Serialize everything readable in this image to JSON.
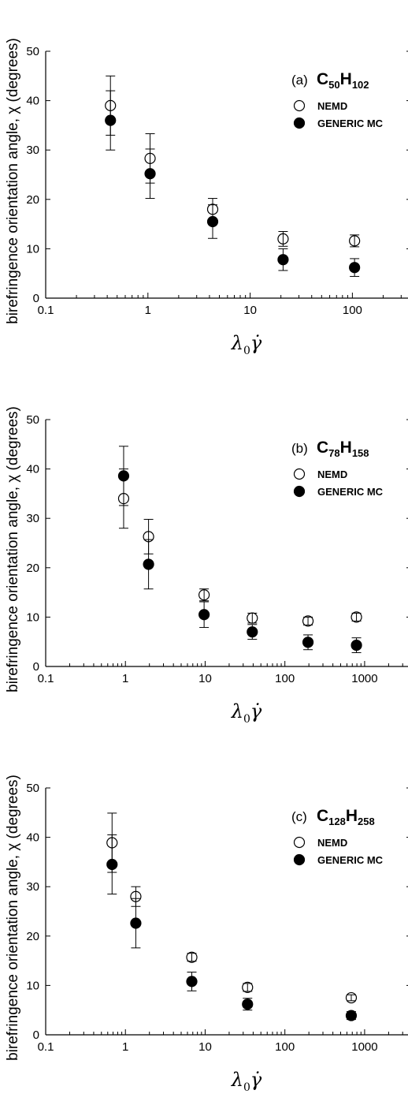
{
  "chart_data": [
    {
      "type": "scatter",
      "panel_tag": "(a)",
      "species": {
        "c": "C",
        "c_sub": "50",
        "h": "H",
        "h_sub": "102"
      },
      "ylabel": "birefringence orientation angle, χ (degrees)",
      "xlabel": {
        "symbol": "λ",
        "sub": "0",
        "rate": "γ̇"
      },
      "xscale": "log",
      "xlim": [
        0.1,
        350
      ],
      "ylim": [
        0,
        50
      ],
      "xticks": [
        "0.1",
        "1",
        "10",
        "100"
      ],
      "yticks": [
        "0",
        "10",
        "20",
        "30",
        "40",
        "50"
      ],
      "legend_position": "top-right",
      "series": [
        {
          "name": "NEMD",
          "marker": "open-circle",
          "x": [
            0.43,
            1.05,
            4.3,
            21,
            105
          ],
          "y": [
            39.0,
            28.3,
            18.0,
            12.0,
            11.6
          ],
          "err": [
            6.0,
            5.0,
            2.2,
            1.5,
            1.2
          ]
        },
        {
          "name": "GENERIC MC",
          "marker": "filled-circle",
          "x": [
            0.43,
            1.05,
            4.3,
            21,
            105
          ],
          "y": [
            36.0,
            25.2,
            15.5,
            7.8,
            6.2
          ],
          "err": [
            6.0,
            5.0,
            3.4,
            2.2,
            1.8
          ]
        }
      ]
    },
    {
      "type": "scatter",
      "panel_tag": "(b)",
      "species": {
        "c": "C",
        "c_sub": "78",
        "h": "H",
        "h_sub": "158"
      },
      "ylabel": "birefringence orientation angle, χ (degrees)",
      "xlabel": {
        "symbol": "λ",
        "sub": "0",
        "rate": "γ̇"
      },
      "xscale": "log",
      "xlim": [
        0.1,
        3500
      ],
      "ylim": [
        0,
        50
      ],
      "xticks": [
        "0.1",
        "1",
        "10",
        "100",
        "1000"
      ],
      "yticks": [
        "0",
        "10",
        "20",
        "30",
        "40",
        "50"
      ],
      "legend_position": "top-right",
      "series": [
        {
          "name": "NEMD",
          "marker": "open-circle",
          "x": [
            0.95,
            1.95,
            9.7,
            39,
            195,
            790
          ],
          "y": [
            34.0,
            26.3,
            14.5,
            9.8,
            9.2,
            10.0
          ],
          "err": [
            6.0,
            3.5,
            1.2,
            1.0,
            0.8,
            0.8
          ]
        },
        {
          "name": "GENERIC MC",
          "marker": "filled-circle",
          "x": [
            0.95,
            1.95,
            9.7,
            39,
            195,
            790
          ],
          "y": [
            38.6,
            20.7,
            10.5,
            7.0,
            4.9,
            4.3
          ],
          "err": [
            6.0,
            5.0,
            2.6,
            1.5,
            1.5,
            1.5
          ]
        }
      ]
    },
    {
      "type": "scatter",
      "panel_tag": "(c)",
      "species": {
        "c": "C",
        "c_sub": "128",
        "h": "H",
        "h_sub": "258"
      },
      "ylabel": "birefringence orientation angle, χ (degrees)",
      "xlabel": {
        "symbol": "λ",
        "sub": "0",
        "rate": "γ̇"
      },
      "xscale": "log",
      "xlim": [
        0.1,
        3500
      ],
      "ylim": [
        0,
        50
      ],
      "xticks": [
        "0.1",
        "1",
        "10",
        "100",
        "1000"
      ],
      "yticks": [
        "0",
        "10",
        "20",
        "30",
        "40",
        "50"
      ],
      "legend_position": "top-right",
      "series": [
        {
          "name": "NEMD",
          "marker": "open-circle",
          "x": [
            0.68,
            1.35,
            6.8,
            34,
            680
          ],
          "y": [
            38.9,
            28.0,
            15.7,
            9.6,
            7.5
          ],
          "err": [
            6.0,
            2.0,
            0.8,
            0.8,
            0.6
          ]
        },
        {
          "name": "GENERIC MC",
          "marker": "filled-circle",
          "x": [
            0.68,
            1.35,
            6.8,
            34,
            680
          ],
          "y": [
            34.5,
            22.6,
            10.8,
            6.2,
            3.9
          ],
          "err": [
            6.0,
            5.0,
            1.9,
            1.2,
            0.8
          ]
        }
      ]
    }
  ]
}
